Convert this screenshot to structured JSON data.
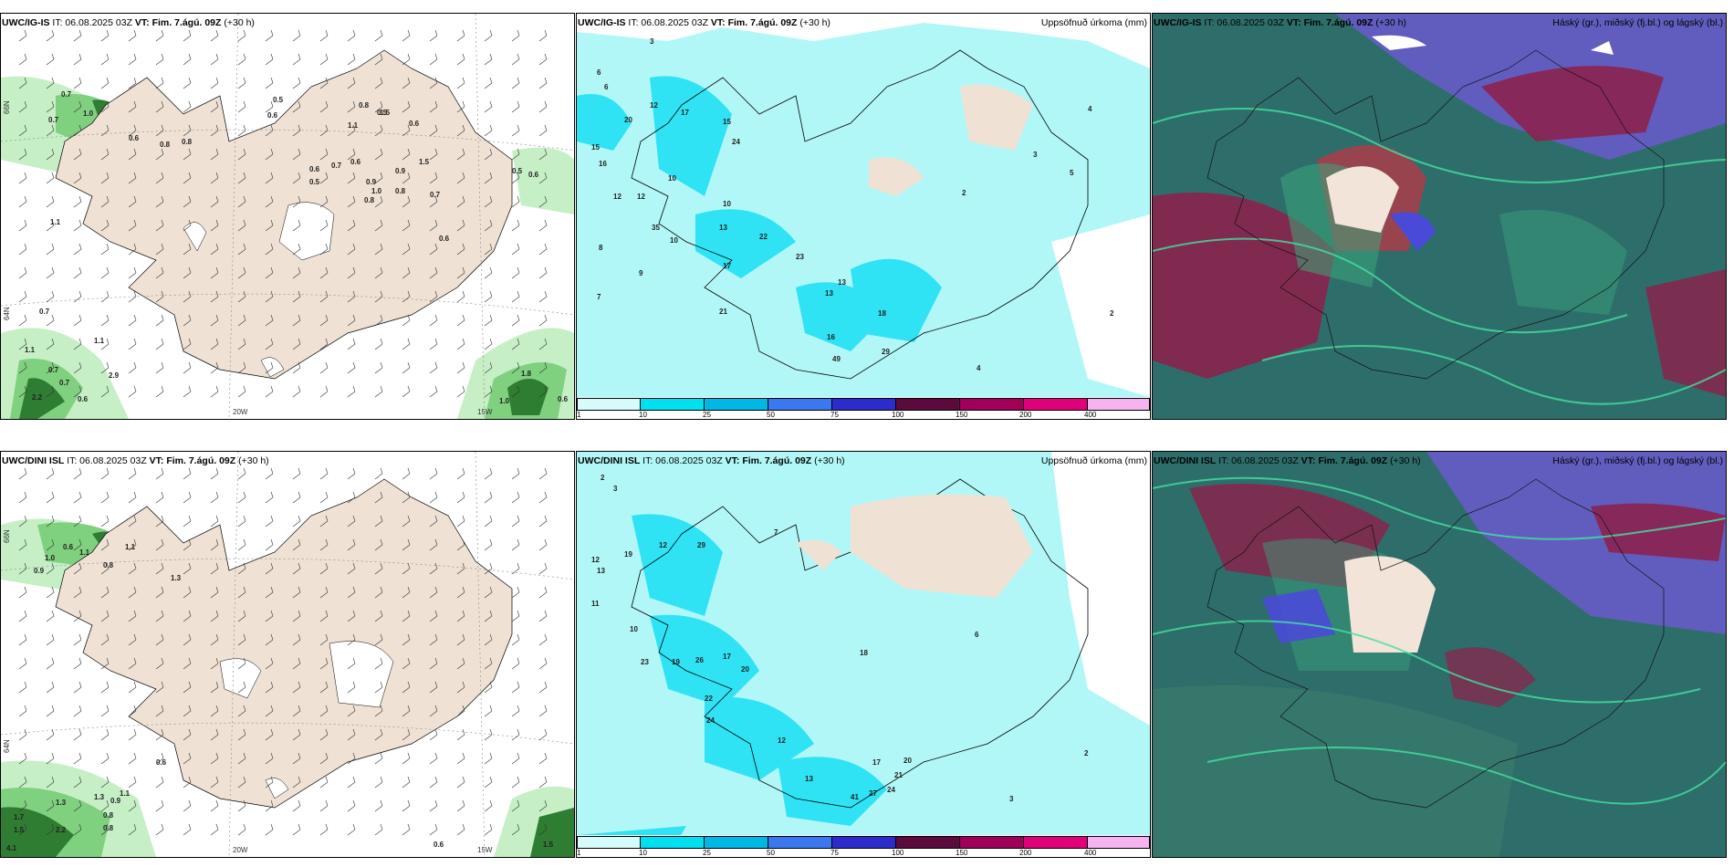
{
  "rows": [
    {
      "model": "UWC/IG-IS",
      "init": "06.08.2025 03Z",
      "valid": "Fim. 7.ágú. 09Z",
      "lead": "(+30 h)",
      "precip_title": "Uppsöfnuð úrkoma (mm)",
      "cloud_title": "Háský (gr.), miðský (fj.bl.) og lágský (bl.)",
      "wind_labels": [
        "0.7",
        "0.7",
        "1.0",
        "0.6",
        "0.5",
        "0.6",
        "0.8",
        "0.8",
        "0.8",
        "0.5",
        "1.1",
        "1.5",
        "0.6",
        "0.6",
        "0.7",
        "0.5",
        "0.6",
        "0.9",
        "1.5",
        "0.7",
        "0.8",
        "1.0",
        "0.9",
        "0.8",
        "0.5",
        "0.6",
        "1.1",
        "0.6",
        "0.7",
        "1.1",
        "1.1",
        "0.7",
        "0.7",
        "2.9",
        "2.2",
        "0.6",
        "1.8",
        "1.0",
        "0.6"
      ],
      "precip_labels": [
        "3",
        "6",
        "6",
        "20",
        "12",
        "17",
        "15",
        "15",
        "16",
        "12",
        "24",
        "12",
        "10",
        "35",
        "10",
        "13",
        "22",
        "17",
        "10",
        "9",
        "8",
        "7",
        "21",
        "16",
        "13",
        "13",
        "23",
        "49",
        "29",
        "18",
        "2",
        "3",
        "5",
        "4",
        "4",
        "2"
      ]
    },
    {
      "model": "UWC/DINI ISL",
      "init": "06.08.2025 03Z",
      "valid": "Fim. 7.ágú. 09Z",
      "lead": "(+30 h)",
      "precip_title": "Uppsöfnuð úrkoma (mm)",
      "cloud_title": "Háský (gr.), miðský (fj.bl.) og lágský (bl.)",
      "wind_labels": [
        "1.0",
        "0.9",
        "0.6",
        "1.1",
        "0.8",
        "1.1",
        "1.3",
        "1.1",
        "0.6",
        "1.3",
        "1.3",
        "0.9",
        "0.8",
        "0.8",
        "1.7",
        "2.2",
        "1.5",
        "4.1",
        "0.6",
        "1.5"
      ],
      "precip_labels": [
        "2",
        "3",
        "13",
        "12",
        "19",
        "12",
        "29",
        "10",
        "11",
        "23",
        "19",
        "26",
        "17",
        "20",
        "22",
        "24",
        "12",
        "13",
        "41",
        "27",
        "24",
        "17",
        "21",
        "20",
        "18",
        "7",
        "6",
        "3",
        "2"
      ]
    }
  ],
  "axes": {
    "lon_labels": [
      "20W",
      "15W"
    ],
    "lat_labels": [
      "66N",
      "64N"
    ]
  },
  "colorbar": {
    "ticks": [
      "1",
      "10",
      "25",
      "50",
      "75",
      "100",
      "150",
      "200",
      "400"
    ],
    "colors": [
      "#d6fbfb",
      "#00e0f0",
      "#00b8e6",
      "#3a78f0",
      "#2c2ccc",
      "#5a0a3c",
      "#a0005a",
      "#e0007a",
      "#f5b4f0"
    ]
  },
  "palette": {
    "land": "#efe2d4",
    "precip_light": "#b2f7f7",
    "precip_cyan": "#2fe3f5",
    "green_light": "#c6efc6",
    "green_mid": "#7fd07f",
    "green_dark": "#2e7d32",
    "cloud_teal": "#2e6e6a",
    "cloud_green": "#3aa57a",
    "cloud_purple": "#6a5acd",
    "cloud_crimson": "#8e1f4a"
  }
}
